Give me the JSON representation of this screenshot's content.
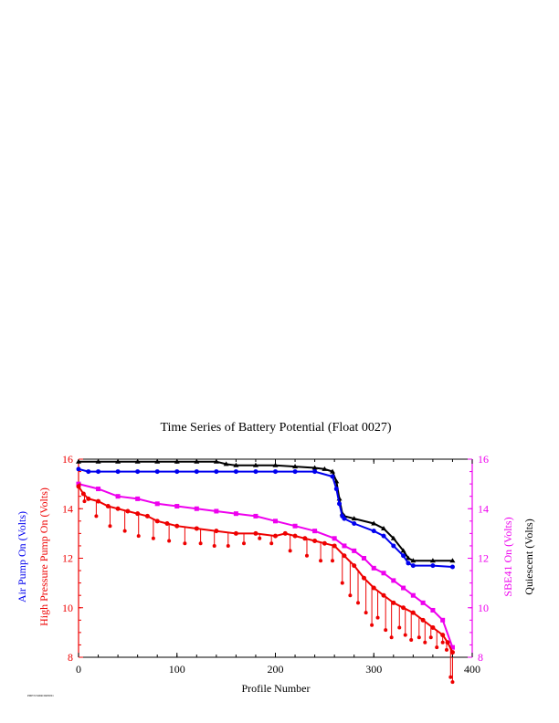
{
  "chart_data": {
    "type": "line",
    "title": "Time Series of Battery Potential (Float 0027)",
    "xlabel": "Profile Number",
    "xlim": [
      0,
      400
    ],
    "xticks": [
      "0",
      "100",
      "200",
      "300",
      "400"
    ],
    "ylim_left": [
      8,
      16
    ],
    "ylim_right": [
      8,
      16
    ],
    "yticks_left": [
      "8",
      "10",
      "12",
      "14",
      "16"
    ],
    "yticks_right": [
      "8",
      "10",
      "12",
      "14",
      "16"
    ],
    "ylabels_left": [
      {
        "text": "Air Pump On (Volts)",
        "color": "#0000ee"
      },
      {
        "text": "High Pressure Pump On (Volts)",
        "color": "#ee0000"
      }
    ],
    "ylabels_right": [
      {
        "text": "SBE41 On (Volts)",
        "color": "#ee00ee"
      },
      {
        "text": "Quiescent (Volts)",
        "color": "#000000"
      }
    ],
    "footer_note": "PMETCMDR 0RP0001",
    "series": [
      {
        "name": "Quiescent (Volts)",
        "color": "#000000",
        "marker": "triangle",
        "x": [
          0,
          20,
          40,
          60,
          80,
          100,
          120,
          140,
          150,
          160,
          180,
          200,
          220,
          240,
          250,
          258,
          262,
          265,
          268,
          270,
          280,
          300,
          310,
          320,
          330,
          335,
          340,
          360,
          380
        ],
        "y": [
          15.9,
          15.9,
          15.9,
          15.9,
          15.9,
          15.9,
          15.9,
          15.9,
          15.8,
          15.75,
          15.75,
          15.75,
          15.7,
          15.65,
          15.6,
          15.5,
          15.1,
          14.4,
          13.8,
          13.7,
          13.6,
          13.4,
          13.2,
          12.8,
          12.3,
          12.0,
          11.9,
          11.9,
          11.9
        ]
      },
      {
        "name": "Air Pump On (Volts)",
        "color": "#0000ee",
        "marker": "circle",
        "x": [
          0,
          10,
          20,
          40,
          60,
          80,
          100,
          120,
          140,
          160,
          180,
          200,
          220,
          240,
          258,
          262,
          265,
          268,
          270,
          280,
          300,
          310,
          320,
          330,
          335,
          340,
          360,
          380
        ],
        "y": [
          15.6,
          15.5,
          15.5,
          15.5,
          15.5,
          15.5,
          15.5,
          15.5,
          15.5,
          15.5,
          15.5,
          15.5,
          15.5,
          15.5,
          15.3,
          14.8,
          14.2,
          13.7,
          13.6,
          13.4,
          13.1,
          12.9,
          12.5,
          12.1,
          11.8,
          11.7,
          11.7,
          11.65
        ]
      },
      {
        "name": "SBE41 On (Volts)",
        "color": "#ee00ee",
        "marker": "square",
        "x": [
          0,
          20,
          40,
          60,
          80,
          100,
          120,
          140,
          160,
          180,
          200,
          220,
          240,
          260,
          270,
          280,
          290,
          300,
          310,
          320,
          330,
          340,
          350,
          360,
          370,
          380
        ],
        "y": [
          15.0,
          14.8,
          14.5,
          14.4,
          14.2,
          14.1,
          14.0,
          13.9,
          13.8,
          13.7,
          13.5,
          13.3,
          13.1,
          12.8,
          12.5,
          12.3,
          12.0,
          11.6,
          11.4,
          11.1,
          10.8,
          10.5,
          10.2,
          9.9,
          9.5,
          8.4
        ]
      },
      {
        "name": "High Pressure Pump On (Volts)",
        "color": "#ee0000",
        "marker": "circle",
        "x": [
          0,
          5,
          10,
          20,
          30,
          40,
          50,
          60,
          70,
          80,
          90,
          100,
          120,
          140,
          160,
          180,
          200,
          210,
          220,
          230,
          240,
          250,
          260,
          270,
          280,
          290,
          300,
          310,
          320,
          330,
          340,
          350,
          360,
          370,
          375,
          380
        ],
        "y": [
          14.9,
          14.6,
          14.4,
          14.3,
          14.1,
          14.0,
          13.9,
          13.8,
          13.7,
          13.5,
          13.4,
          13.3,
          13.2,
          13.1,
          13.0,
          13.0,
          12.9,
          13.0,
          12.9,
          12.8,
          12.7,
          12.6,
          12.5,
          12.1,
          11.7,
          11.2,
          10.8,
          10.5,
          10.2,
          10.0,
          9.8,
          9.5,
          9.2,
          8.9,
          8.6,
          8.2
        ]
      },
      {
        "name": "High Pressure Pump On (Volts) spikes",
        "color": "#ee0000",
        "marker": "circle-spike",
        "x": [
          6,
          18,
          32,
          47,
          61,
          76,
          92,
          108,
          124,
          138,
          152,
          168,
          184,
          196,
          215,
          232,
          246,
          258,
          268,
          276,
          284,
          292,
          298,
          304,
          312,
          318,
          326,
          332,
          338,
          346,
          352,
          358,
          364,
          370,
          374,
          378,
          380
        ],
        "y": [
          14.3,
          13.7,
          13.3,
          13.1,
          12.9,
          12.8,
          12.7,
          12.6,
          12.6,
          12.5,
          12.5,
          12.6,
          12.8,
          12.6,
          12.3,
          12.1,
          11.9,
          11.9,
          11.0,
          10.5,
          10.2,
          9.8,
          9.3,
          9.6,
          9.1,
          8.8,
          9.2,
          8.9,
          8.7,
          8.8,
          8.6,
          8.8,
          8.4,
          8.6,
          8.3,
          7.2,
          7.0
        ]
      }
    ]
  }
}
